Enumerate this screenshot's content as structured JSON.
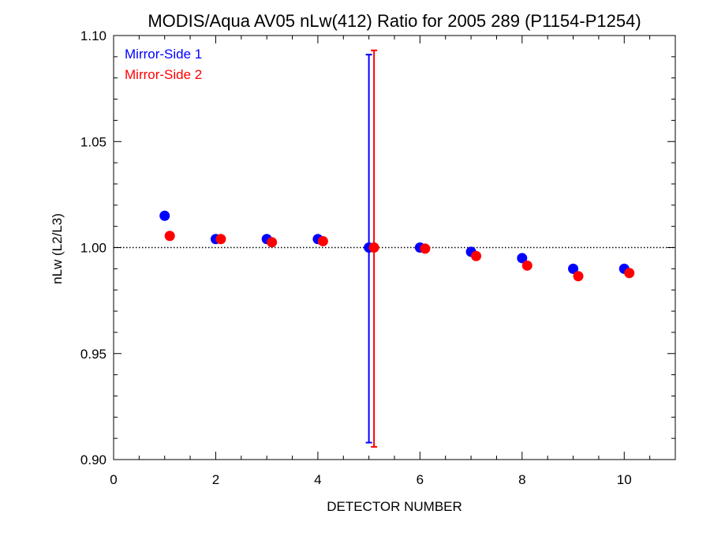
{
  "chart_data": {
    "type": "scatter",
    "title": "MODIS/Aqua AV05 nLw(412) Ratio for 2005 289 (P1154-P1254)",
    "xlabel": "DETECTOR NUMBER",
    "ylabel": "nLw (L2/L3)",
    "xlim": [
      0,
      11
    ],
    "ylim": [
      0.9,
      1.1
    ],
    "x_ticks": [
      0,
      2,
      4,
      6,
      8,
      10
    ],
    "x_tick_labels": [
      "0",
      "2",
      "4",
      "6",
      "8",
      "10"
    ],
    "y_ticks": [
      0.9,
      0.95,
      1.0,
      1.05,
      1.1
    ],
    "y_tick_labels": [
      "0.90",
      "0.95",
      "1.00",
      "1.05",
      "1.10"
    ],
    "reference_line": 1.0,
    "legend_position": "top-left",
    "series": [
      {
        "name": "Mirror-Side 1",
        "color": "#0000ff",
        "x": [
          1,
          2,
          3,
          4,
          5,
          6,
          7,
          8,
          9,
          10
        ],
        "y": [
          1.015,
          1.004,
          1.004,
          1.004,
          1.0,
          1.0,
          0.998,
          0.995,
          0.99,
          0.99
        ],
        "error_bar": {
          "x": 5,
          "low": 0.908,
          "high": 1.091
        }
      },
      {
        "name": "Mirror-Side 2",
        "color": "#ff0000",
        "x": [
          1.1,
          2.1,
          3.1,
          4.1,
          5.1,
          6.1,
          7.1,
          8.1,
          9.1,
          10.1
        ],
        "y": [
          1.0055,
          1.004,
          1.0025,
          1.003,
          1.0,
          0.9995,
          0.996,
          0.9915,
          0.9865,
          0.988
        ],
        "error_bar": {
          "x": 5.1,
          "low": 0.906,
          "high": 1.093
        }
      }
    ]
  }
}
